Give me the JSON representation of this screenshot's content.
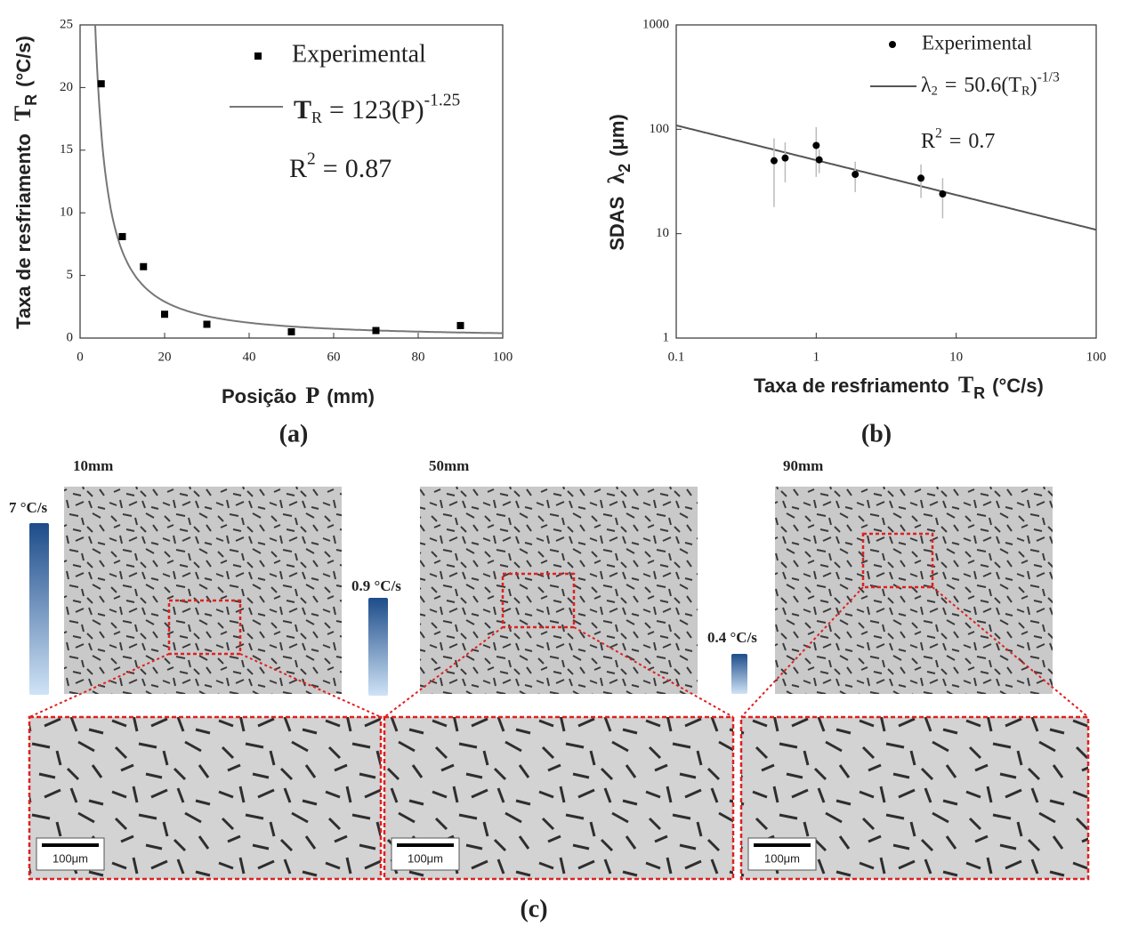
{
  "chart_data": [
    {
      "type": "scatter",
      "panel": "(a)",
      "x_label": {
        "text": "Posição",
        "symbol": "P",
        "unit": "(mm)"
      },
      "y_label": {
        "text": "Taxa de resfriamento",
        "symbol": "T",
        "subscript": "R",
        "unit": "(°C/s)"
      },
      "series": [
        {
          "name": "Experimental",
          "color": "#000000",
          "x": [
            5,
            10,
            15,
            20,
            30,
            50,
            70,
            90
          ],
          "values": [
            20.3,
            8.1,
            5.7,
            1.9,
            1.1,
            0.5,
            0.6,
            1.0
          ]
        }
      ],
      "fit": {
        "color": "#777777",
        "symbol": "T",
        "subscript": "R",
        "equals": "=",
        "a": 123,
        "base": "(P)",
        "b": -1.25
      },
      "r2": {
        "symbol": "R",
        "power": "2",
        "equals": "=",
        "value": 0.87
      },
      "xlim": [
        0,
        100
      ],
      "xticks": [
        0,
        20,
        40,
        60,
        80,
        100
      ],
      "ylim": [
        0,
        25
      ],
      "yticks": [
        0,
        5,
        10,
        15,
        20,
        25
      ],
      "xlog": false,
      "ylog": false
    },
    {
      "type": "scatter",
      "panel": "(b)",
      "x_label": {
        "text": "Taxa de resfriamento",
        "symbol": "T",
        "subscript": "R",
        "unit": "(°C/s)"
      },
      "y_label": {
        "text": "SDAS",
        "symbol": "λ",
        "subscript": "2",
        "unit": "(μm)"
      },
      "series": [
        {
          "name": "Experimental",
          "color": "#000000",
          "x": [
            0.5,
            0.6,
            1.0,
            1.05,
            1.9,
            5.6,
            8.0
          ],
          "values": [
            50,
            53,
            70,
            51,
            37,
            34,
            24
          ],
          "errors": [
            32,
            22,
            35,
            13,
            12,
            12,
            10
          ],
          "error_color": "#bbbbbb"
        }
      ],
      "fit": {
        "color": "#555555",
        "symbol": "λ",
        "subscript": "2",
        "equals": "=",
        "a": 50.6,
        "base": "(T",
        "base_subscript": "R",
        "base_close": ")",
        "b": {
          "value": -0.3333,
          "label": "-1/3"
        }
      },
      "r2": {
        "symbol": "R",
        "power": "2",
        "equals": "=",
        "value": 0.7
      },
      "xlim": [
        0.1,
        100
      ],
      "xticks": [
        0.1,
        1,
        10,
        100
      ],
      "ylim": [
        1,
        1000
      ],
      "yticks": [
        1,
        10,
        100,
        1000
      ],
      "xlog": true,
      "ylog": true
    }
  ],
  "micrographs": {
    "panel": "(c)",
    "images": [
      {
        "position": "10mm",
        "rate": "7 °C/s",
        "scale": "100μm"
      },
      {
        "position": "50mm",
        "rate": "0.9 °C/s",
        "scale": "100μm"
      },
      {
        "position": "90mm",
        "rate": "0.4 °C/s",
        "scale": "100μm"
      }
    ]
  }
}
